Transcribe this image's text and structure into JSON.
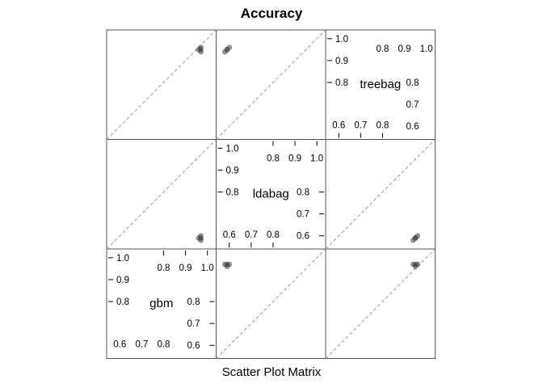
{
  "chart_data": {
    "type": "scatter",
    "title": "Accuracy",
    "xlabel": "Scatter Plot Matrix",
    "variables": [
      "gbm",
      "ldabag",
      "treebag"
    ],
    "range": [
      0.54,
      1.04
    ],
    "ticks": {
      "upper_right": [
        "0.8",
        "0.9",
        "1.0"
      ],
      "upper_left": [
        "0.8",
        "0.9",
        "1.0"
      ],
      "lower_left": [
        "0.6",
        "0.7",
        "0.8"
      ],
      "lower_right": [
        "0.6",
        "0.7",
        "0.8"
      ]
    },
    "tick_values_upper": [
      0.8,
      0.9,
      1.0
    ],
    "tick_values_lower": [
      0.6,
      0.7,
      0.8
    ],
    "grid": false,
    "reference_line": "dashed y = x",
    "series": [
      {
        "values": {
          "gbm": 0.97,
          "ldabag": 0.59,
          "treebag": 0.95
        }
      },
      {
        "values": {
          "gbm": 0.97,
          "ldabag": 0.6,
          "treebag": 0.96
        }
      },
      {
        "values": {
          "gbm": 0.96,
          "ldabag": 0.59,
          "treebag": 0.95
        }
      },
      {
        "values": {
          "gbm": 0.97,
          "ldabag": 0.58,
          "treebag": 0.94
        }
      }
    ]
  }
}
